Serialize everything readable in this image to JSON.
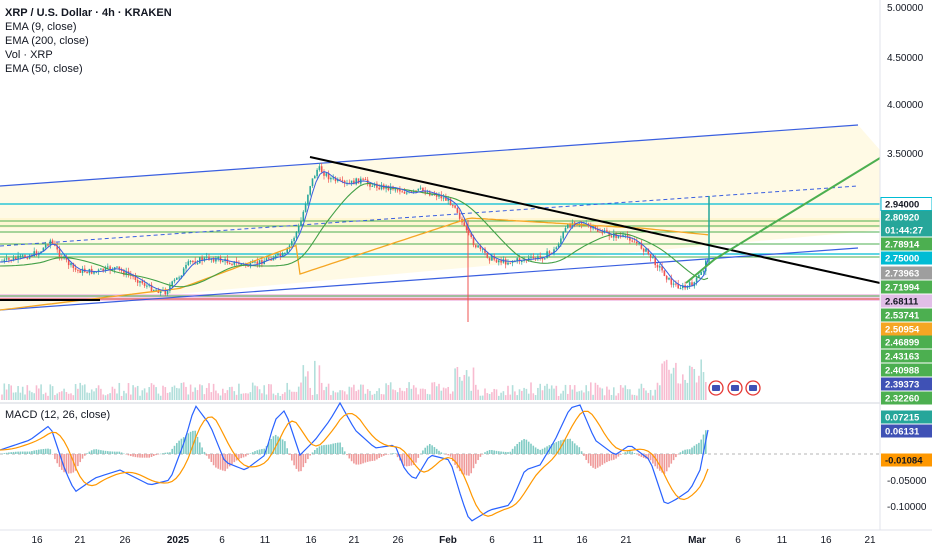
{
  "header": {
    "symbol_title": "XRP / U.S. Dollar · 4h · KRAKEN",
    "indicators": [
      "EMA (9, close)",
      "EMA (200, close)",
      "Vol · XRP",
      "EMA (50, close)"
    ]
  },
  "macd_panel": {
    "title": "MACD (12, 26, close)"
  },
  "colors": {
    "line_blue": "#3a5fe0",
    "ema200": "#f5a623",
    "ema50": "#43a047",
    "trend_green": "#4caf50",
    "trend_black": "#000000",
    "candle_up": "#26a69a",
    "candle_down": "#ef5350",
    "macd_line": "#2962ff",
    "signal_line": "#ff9800"
  },
  "price_axis": {
    "labels": [
      "5.00000",
      "4.50000",
      "4.00000",
      "3.50000"
    ],
    "badges": [
      {
        "value": "2.94000",
        "bg": "#ffffff",
        "fg": "#131722",
        "border": "#00bcd4"
      },
      {
        "value": "2.80920",
        "bg": "#26a69a",
        "fg": "#ffffff"
      },
      {
        "value": "01:44:27",
        "bg": "#26a69a",
        "fg": "#ffffff"
      },
      {
        "value": "2.78914",
        "bg": "#4caf50",
        "fg": "#ffffff"
      },
      {
        "value": "2.75000",
        "bg": "#00bcd4",
        "fg": "#ffffff"
      },
      {
        "value": "2.73963",
        "bg": "#9e9e9e",
        "fg": "#ffffff"
      },
      {
        "value": "2.71994",
        "bg": "#4caf50",
        "fg": "#ffffff"
      },
      {
        "value": "2.68111",
        "bg": "#e1bee7",
        "fg": "#131722"
      },
      {
        "value": "2.53741",
        "bg": "#4caf50",
        "fg": "#ffffff"
      },
      {
        "value": "2.50954",
        "bg": "#f5a623",
        "fg": "#ffffff"
      },
      {
        "value": "2.46899",
        "bg": "#4caf50",
        "fg": "#ffffff"
      },
      {
        "value": "2.43163",
        "bg": "#4caf50",
        "fg": "#ffffff"
      },
      {
        "value": "2.40988",
        "bg": "#4caf50",
        "fg": "#ffffff"
      },
      {
        "value": "2.39373",
        "bg": "#3f51b5",
        "fg": "#ffffff"
      },
      {
        "value": "2.32260",
        "bg": "#4caf50",
        "fg": "#ffffff"
      }
    ]
  },
  "macd_axis": {
    "labels": [
      "-0.05000",
      "-0.10000"
    ],
    "badges": [
      {
        "value": "0.07215",
        "bg": "#26a69a",
        "fg": "#ffffff"
      },
      {
        "value": "0.06131",
        "bg": "#3f51b5",
        "fg": "#ffffff"
      },
      {
        "value": "-0.01084",
        "bg": "#ff9800",
        "fg": "#131722"
      }
    ]
  },
  "date_axis": {
    "labels": [
      "16",
      "21",
      "26",
      "2025",
      "6",
      "11",
      "16",
      "21",
      "26",
      "Feb",
      "6",
      "11",
      "16",
      "21",
      "Mar",
      "6",
      "11",
      "16",
      "21"
    ]
  }
}
